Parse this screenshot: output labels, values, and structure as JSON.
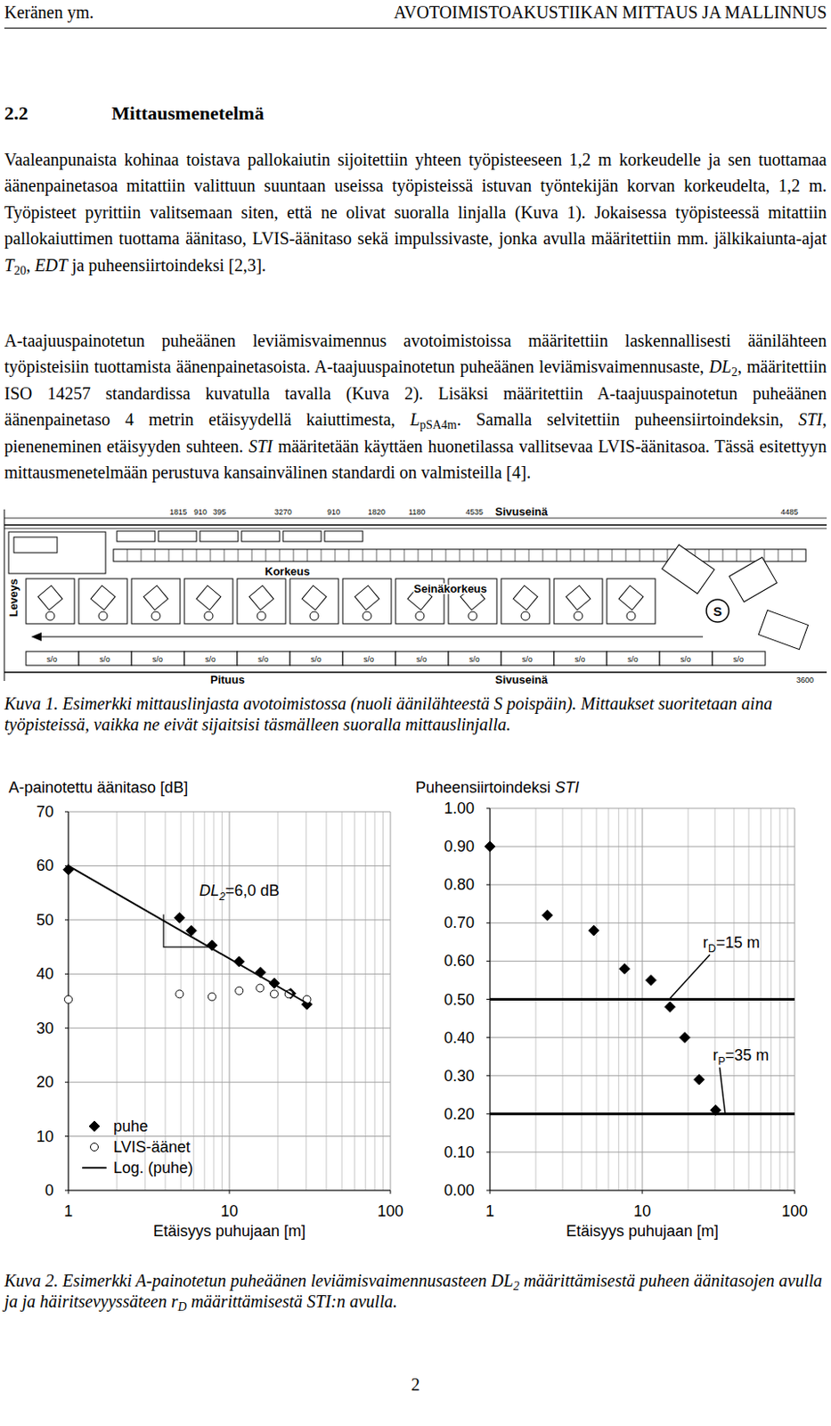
{
  "header": {
    "left": "Keränen ym.",
    "right": "AVOTOIMISTOAKUSTIIKAN MITTAUS JA MALLINNUS"
  },
  "section": {
    "number": "2.2",
    "title": "Mittausmenetelmä"
  },
  "paragraphs": [
    [
      {
        "text": "Vaaleanpunaista kohinaa toistava pallokaiutin sijoitettiin yhteen työpisteeseen 1,2 m korkeudelle ja sen tuottamaa äänenpainetasoa mitattiin valittuun suuntaan useissa työpisteissä istuvan työntekijän korvan korkeudelta, 1,2 m. Työpisteet pyrittiin valitsemaan siten, että ne olivat suoralla linjalla (Kuva 1). Jokaisessa työpisteessä mitattiin pallokaiuttimen tuottama äänitaso, LVIS-äänitaso sekä impulssivaste, jonka avulla määritettiin mm. jälkikaiunta-ajat ",
        "style": "plain"
      },
      {
        "text": "T",
        "style": "italic"
      },
      {
        "text": "20",
        "style": "sub"
      },
      {
        "text": ", ",
        "style": "plain"
      },
      {
        "text": "EDT",
        "style": "italic"
      },
      {
        "text": " ja puheensiirtoindeksi [2,3].",
        "style": "plain"
      }
    ],
    [
      {
        "text": "A-taajuuspainotetun puheäänen leviämisvaimennus avotoimistoissa määritettiin laskennallisesti äänilähteen työpisteisiin tuottamista äänenpainetasoista. A-taajuuspainotetun puheäänen leviämisvaimennusaste, ",
        "style": "plain"
      },
      {
        "text": "DL",
        "style": "italic"
      },
      {
        "text": "2",
        "style": "sub"
      },
      {
        "text": ", määritettiin ISO 14257 standardissa kuvatulla tavalla (Kuva 2). Lisäksi määritettiin A-taajuuspainotetun puheäänen äänenpainetaso 4 metrin etäisyydellä kaiuttimesta, ",
        "style": "plain"
      },
      {
        "text": "L",
        "style": "italic"
      },
      {
        "text": "pSA4m",
        "style": "sub"
      },
      {
        "text": ". Samalla selvitettiin puheensiirtoindeksin, ",
        "style": "plain"
      },
      {
        "text": "STI",
        "style": "italic"
      },
      {
        "text": ", pieneneminen etäisyyden suhteen. ",
        "style": "plain"
      },
      {
        "text": "STI",
        "style": "italic"
      },
      {
        "text": " määritetään käyttäen huonetilassa vallitsevaa LVIS-äänitasoa. Tässä esitettyyn mittausmenetelmään perustuva kansainvälinen standardi on valmisteilla [4].",
        "style": "plain"
      }
    ]
  ],
  "figure1": {
    "width_label": "Leveys",
    "height_label": "Korkeus",
    "wall_height_label": "Seinäkorkeus",
    "side_wall_label": "Sivuseinä",
    "length_label": "Pituus",
    "source_label": "S",
    "partition_label": "s/o",
    "top_dimensions": [
      "1815",
      "910",
      "395",
      "3270",
      "910",
      "1820",
      "1180",
      "4535",
      "4485"
    ],
    "bottom_dimensions": [
      "3600"
    ],
    "caption": [
      {
        "text": "Kuva 1. Esimerkki mittauslinjasta avotoimistossa (nuoli äänilähteestä S poispäin). Mittaukset suoritetaan aina työpisteissä, vaikka ne eivät sijaitsisi täsmälleen suoralla mittauslinjalla.",
        "style": "plain"
      }
    ]
  },
  "chart_data": [
    {
      "type": "scatter",
      "title": [
        {
          "text": "A-painotettu äänitaso [dB]",
          "style": "plain"
        }
      ],
      "x_label": "Etäisyys puhujaan [m]",
      "log": "x",
      "xlim": [
        1,
        100
      ],
      "xticks": [
        1,
        10,
        100
      ],
      "ylim": [
        0,
        70
      ],
      "yticks": [
        0,
        10,
        20,
        30,
        40,
        50,
        60,
        70
      ],
      "grid": true,
      "legend": "lower left",
      "series": [
        {
          "name": "puhe",
          "type": "scatter",
          "marker": "diamond",
          "line_style": "none",
          "color": "#000000",
          "x": [
            1,
            4.9,
            5.8,
            7.8,
            11.5,
            15.6,
            19,
            24,
            30.3
          ],
          "values": [
            59.3,
            50.4,
            48,
            45.3,
            42.3,
            40.3,
            38.3,
            36.4,
            34.4
          ]
        },
        {
          "name": "LVIS-äänet",
          "type": "scatter",
          "marker": "circle-open",
          "line_style": "none",
          "color": "#000000",
          "x": [
            1,
            4.9,
            7.8,
            11.5,
            15.5,
            19,
            23.4,
            30.3
          ],
          "values": [
            35.3,
            36.3,
            35.8,
            36.9,
            37.4,
            36.3,
            36.3,
            35.3
          ]
        },
        {
          "name": "Log. (puhe)",
          "type": "line",
          "marker": "none",
          "line_style": "solid",
          "color": "#000000",
          "x": [
            1,
            30.3
          ],
          "values": [
            60,
            34.6
          ]
        }
      ],
      "annotations": [
        {
          "label": [
            {
              "text": "DL",
              "style": "italic"
            },
            {
              "text": "2",
              "style": "italic-sub"
            },
            {
              "text": "=6,0 dB",
              "style": "plain"
            }
          ],
          "label_x": 6.5,
          "label_y": 54.5,
          "triangle_x": [
            3.9,
            3.9,
            7.8
          ],
          "triangle_y": [
            51,
            45,
            45
          ]
        }
      ]
    },
    {
      "type": "scatter",
      "title": [
        {
          "text": "Puheensiirtoindeksi ",
          "style": "plain"
        },
        {
          "text": "STI",
          "style": "italic"
        }
      ],
      "x_label": "Etäisyys puhujaan [m]",
      "log": "x",
      "xlim": [
        1,
        100
      ],
      "xticks": [
        1,
        10,
        100
      ],
      "ylim": [
        0,
        1
      ],
      "yticks": [
        {
          "value": 0,
          "label": "0.00"
        },
        {
          "value": 0.1,
          "label": "0.10"
        },
        {
          "value": 0.2,
          "label": "0.20"
        },
        {
          "value": 0.3,
          "label": "0.30"
        },
        {
          "value": 0.4,
          "label": "0.40"
        },
        {
          "value": 0.5,
          "label": "0.50"
        },
        {
          "value": 0.6,
          "label": "0.60"
        },
        {
          "value": 0.7,
          "label": "0.70"
        },
        {
          "value": 0.8,
          "label": "0.80"
        },
        {
          "value": 0.9,
          "label": "0.90"
        },
        {
          "value": 1,
          "label": "1.00"
        }
      ],
      "grid": true,
      "series": [
        {
          "type": "scatter",
          "marker": "diamond",
          "line_style": "none",
          "color": "#000000",
          "x": [
            1,
            2.38,
            4.8,
            7.65,
            11.4,
            15.2,
            19,
            23.6,
            30.3
          ],
          "values": [
            0.9,
            0.72,
            0.68,
            0.58,
            0.55,
            0.48,
            0.4,
            0.29,
            0.21
          ]
        }
      ],
      "reference_lines": [
        0.5,
        0.2
      ],
      "annotations": [
        {
          "label": [
            {
              "text": "r",
              "style": "plain"
            },
            {
              "text": "D",
              "style": "sub"
            },
            {
              "text": "=15 m",
              "style": "plain"
            }
          ],
          "x": 15,
          "y": 0.5,
          "label_x": 25,
          "label_y": 0.635
        },
        {
          "label": [
            {
              "text": "r",
              "style": "plain"
            },
            {
              "text": "P",
              "style": "sub"
            },
            {
              "text": "=35 m",
              "style": "plain"
            }
          ],
          "x": 35,
          "y": 0.2,
          "label_x": 29,
          "label_y": 0.34
        }
      ]
    }
  ],
  "figure2_caption": [
    {
      "text": "Kuva 2. Esimerkki A-painotetun puheäänen leviämisvaimennusasteen ",
      "style": "plain"
    },
    {
      "text": "DL",
      "style": "plain"
    },
    {
      "text": "2",
      "style": "sub"
    },
    {
      "text": " määrittämisestä puheen äänitasojen avulla ja ja häiritsevyyssäteen ",
      "style": "plain"
    },
    {
      "text": "r",
      "style": "plain"
    },
    {
      "text": "D",
      "style": "sub"
    },
    {
      "text": " määrittämisestä STI:n avulla.",
      "style": "plain"
    }
  ],
  "page_number": "2"
}
